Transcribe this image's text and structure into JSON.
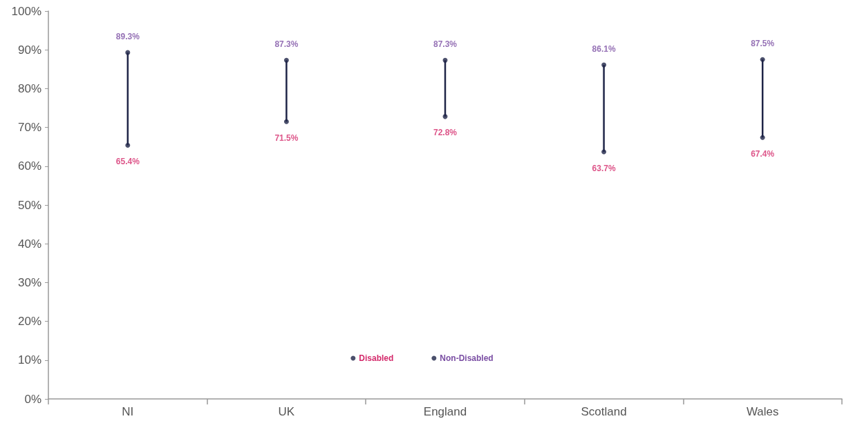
{
  "chart_data": {
    "type": "scatter",
    "categories": [
      "NI",
      "UK",
      "England",
      "Scotland",
      "Wales"
    ],
    "ylim": [
      0,
      100
    ],
    "yticks": [
      {
        "value": 0,
        "label": "0%"
      },
      {
        "value": 10,
        "label": "10%"
      },
      {
        "value": 20,
        "label": "20%"
      },
      {
        "value": 30,
        "label": "30%"
      },
      {
        "value": 40,
        "label": "40%"
      },
      {
        "value": 50,
        "label": "50%"
      },
      {
        "value": 60,
        "label": "60%"
      },
      {
        "value": 70,
        "label": "70%"
      },
      {
        "value": 80,
        "label": "80%"
      },
      {
        "value": 90,
        "label": "90%"
      },
      {
        "value": 100,
        "label": "100%"
      }
    ],
    "series": [
      {
        "name": "Disabled",
        "color": "#1e2447",
        "values": [
          65.4,
          71.5,
          72.8,
          63.7,
          67.4
        ],
        "value_labels": [
          "65.4%",
          "71.5%",
          "72.8%",
          "63.7%",
          "67.4%"
        ]
      },
      {
        "name": "Non-Disabled",
        "color": "#1e2447",
        "values": [
          89.3,
          87.3,
          87.3,
          86.1,
          87.5
        ],
        "value_labels": [
          "89.3%",
          "87.3%",
          "87.3%",
          "86.1%",
          "87.5%"
        ]
      }
    ],
    "marker": "circle",
    "grid": false,
    "legend": "bottom"
  }
}
